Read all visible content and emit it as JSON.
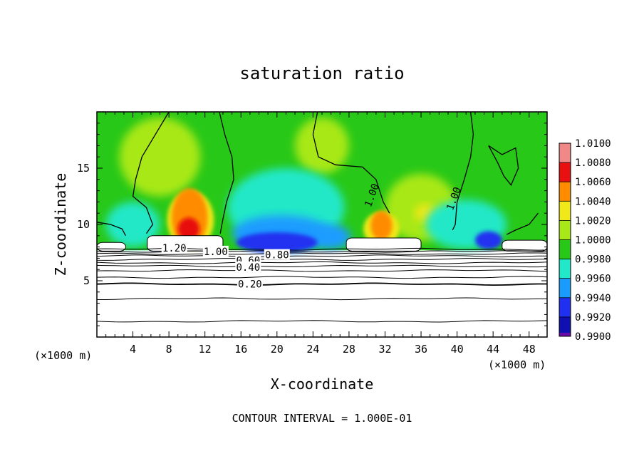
{
  "chart_data": {
    "type": "heatmap",
    "title": "saturation ratio",
    "xlabel": "X-coordinate",
    "ylabel": "Z-coordinate",
    "x_unit": "(×1000 m)",
    "z_unit": "(×1000 m)",
    "xlim": [
      0,
      50
    ],
    "ylim": [
      0,
      20
    ],
    "x_ticks": [
      4,
      8,
      12,
      16,
      20,
      24,
      28,
      32,
      36,
      40,
      44,
      48
    ],
    "x_tick_labels": [
      "4",
      "8",
      "12",
      "16",
      "20",
      "24",
      "28",
      "32",
      "36",
      "40",
      "44",
      "48"
    ],
    "y_ticks": [
      5,
      10,
      15
    ],
    "y_tick_labels": [
      "5",
      "10",
      "15"
    ],
    "footer": "CONTOUR INTERVAL = 1.000E-01",
    "colorbar": {
      "min": 0.99,
      "max": 1.01,
      "levels": [
        0.99,
        0.992,
        0.994,
        0.996,
        0.998,
        1.0,
        1.002,
        1.004,
        1.006,
        1.008,
        1.01
      ],
      "labels": [
        "0.9900",
        "0.9920",
        "0.9940",
        "0.9960",
        "0.9980",
        "1.0000",
        "1.0020",
        "1.0040",
        "1.0060",
        "1.0080",
        "1.0100"
      ],
      "colors": [
        "#6a0aa8",
        "#1010b0",
        "#2030f0",
        "#1a9cff",
        "#20e8c8",
        "#28c818",
        "#a8e818",
        "#f0e818",
        "#ff8c00",
        "#e81010",
        "#f08888"
      ]
    },
    "contour_labels": [
      {
        "text": "1.20",
        "x": 8.6,
        "z": 7.9
      },
      {
        "text": "1.00",
        "x": 13.2,
        "z": 7.6
      },
      {
        "text": "0.80",
        "x": 20.0,
        "z": 7.3
      },
      {
        "text": "0.60",
        "x": 16.8,
        "z": 6.8
      },
      {
        "text": "0.40",
        "x": 16.8,
        "z": 6.2
      },
      {
        "text": "0.20",
        "x": 17.0,
        "z": 4.7
      },
      {
        "text": "1.00",
        "x": 30.5,
        "z": 12.6
      },
      {
        "text": "1.00",
        "x": 39.6,
        "z": 12.3
      }
    ],
    "stable_contour_levels_z": [
      1.4,
      3.4,
      4.7,
      5.3,
      5.9,
      6.3,
      6.6,
      6.9,
      7.2,
      7.4,
      7.6,
      7.8
    ],
    "features": [
      {
        "name": "supersaturated-core-left",
        "x_center": 10.3,
        "z_top": 14.0,
        "value": 1.008
      },
      {
        "name": "supersaturated-core-right",
        "x_center": 31.5,
        "z_top": 11.3,
        "value": 1.006
      },
      {
        "name": "subsaturated-band",
        "x_range": [
          16,
          28
        ],
        "z_range": [
          7.8,
          11
        ],
        "value": 0.993
      }
    ]
  }
}
